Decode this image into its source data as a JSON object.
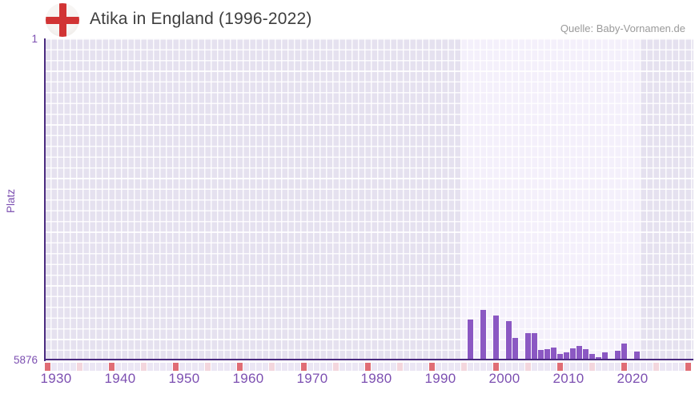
{
  "header": {
    "title": "Atika in England (1996-2022)",
    "source": "Quelle: Baby-Vornamen.de",
    "flag_icon": "england-flag-icon"
  },
  "chart_data": {
    "type": "bar",
    "title": "Atika in England (1996-2022)",
    "xlabel": "",
    "ylabel": "Platz",
    "y_axis": {
      "top_label": "1",
      "bottom_label": "5876",
      "min": 1,
      "max": 5876,
      "note": "rank axis inverted: 1 (best) at top, 5876 at bottom; taller bar = better rank"
    },
    "x_axis": {
      "start_year": 1930,
      "end_year": 2030,
      "decade_labels": [
        "1930",
        "1940",
        "1950",
        "1960",
        "1970",
        "1980",
        "1990",
        "2000",
        "2010",
        "2020"
      ],
      "tick_legend": "red square = decade year, pink square = 5-year mark, lavender = other years"
    },
    "highlight_band": {
      "from_year": 1995,
      "to_year": 2022
    },
    "points": [
      {
        "year": 1996,
        "platz": 5140
      },
      {
        "year": 1998,
        "platz": 4970
      },
      {
        "year": 2000,
        "platz": 5065
      },
      {
        "year": 2002,
        "platz": 5180
      },
      {
        "year": 2003,
        "platz": 5480
      },
      {
        "year": 2005,
        "platz": 5400
      },
      {
        "year": 2006,
        "platz": 5400
      },
      {
        "year": 2007,
        "platz": 5700
      },
      {
        "year": 2008,
        "platz": 5680
      },
      {
        "year": 2009,
        "platz": 5650
      },
      {
        "year": 2010,
        "platz": 5770
      },
      {
        "year": 2011,
        "platz": 5750
      },
      {
        "year": 2012,
        "platz": 5670
      },
      {
        "year": 2013,
        "platz": 5630
      },
      {
        "year": 2014,
        "platz": 5690
      },
      {
        "year": 2015,
        "platz": 5770
      },
      {
        "year": 2016,
        "platz": 5830
      },
      {
        "year": 2017,
        "platz": 5750
      },
      {
        "year": 2019,
        "platz": 5715
      },
      {
        "year": 2020,
        "platz": 5590
      },
      {
        "year": 2022,
        "platz": 5730
      }
    ],
    "colors": {
      "bar": "#8b58c3",
      "axis": "#4b2b80",
      "label": "#7c4fb1",
      "cell": "#e5e1ef",
      "band": "#f4f0fb",
      "tick_decade": "#e06d75",
      "tick_five_year": "#f3d6dd",
      "tick_year": "#ebe6f4",
      "title": "#3d3d3d",
      "source": "#9a9a9a",
      "flag_cross": "#d13434"
    }
  }
}
